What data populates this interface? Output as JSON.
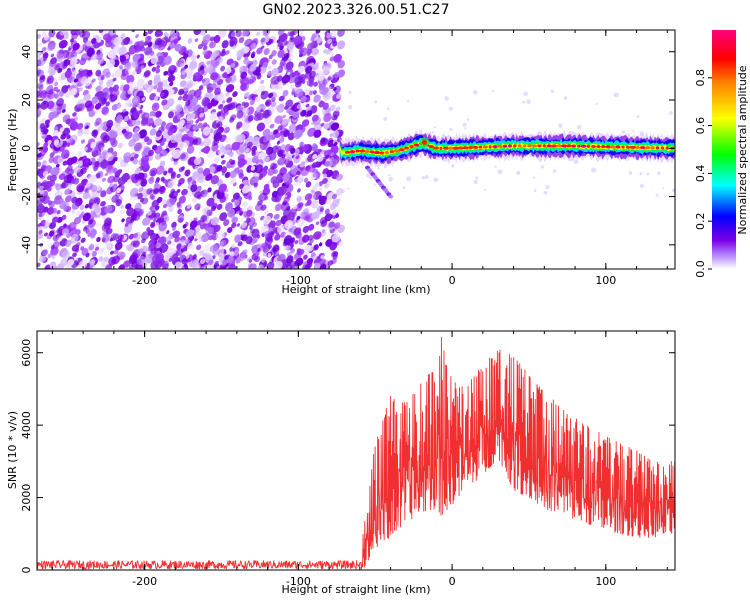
{
  "title": "GN02.2023.326.00.51.C27",
  "colorbar": {
    "label": "Normalized spectral amplitude",
    "ticks": [
      "0.0",
      "0.2",
      "0.4",
      "0.6",
      "0.8"
    ],
    "tick_values": [
      0.0,
      0.2,
      0.4,
      0.6,
      0.8
    ],
    "range": [
      0,
      1
    ],
    "colors": [
      "#ffffff",
      "#7a00e6",
      "#0000ff",
      "#00ffff",
      "#00ff00",
      "#ffff00",
      "#ff0000",
      "#ff0080"
    ]
  },
  "chart_data": [
    {
      "type": "heatmap",
      "title": "",
      "xlabel": "Height of straight line (km)",
      "ylabel": "Frequency (Hz)",
      "xlim": [
        -270,
        145
      ],
      "ylim": [
        -50,
        49
      ],
      "x_ticks": [
        -200,
        -100,
        0,
        100
      ],
      "x_tick_labels": [
        "-200",
        "-100",
        "0",
        "100"
      ],
      "y_ticks": [
        -40,
        -20,
        0,
        20,
        40
      ],
      "y_tick_labels": [
        "-40",
        "-20",
        "0",
        "20",
        "40"
      ],
      "grid": false,
      "regions": [
        {
          "name": "noise",
          "x_range": [
            -270,
            -75
          ],
          "freq_range": [
            -50,
            49
          ],
          "amplitude": "0.0-0.4"
        },
        {
          "name": "signal band",
          "x_range": [
            -75,
            145
          ],
          "freq_center": 0,
          "amplitude": "0.8-1.0"
        },
        {
          "name": "secondary trace",
          "x_range": [
            -55,
            -40
          ],
          "freq_range": [
            -20,
            -8
          ],
          "amplitude": "0.2-0.4"
        }
      ],
      "signal_center_freq": [
        [
          -72,
          -2
        ],
        [
          -60,
          -1
        ],
        [
          -45,
          -2
        ],
        [
          -35,
          -1
        ],
        [
          -20,
          2
        ],
        [
          -10,
          0
        ],
        [
          0,
          0
        ],
        [
          40,
          1
        ],
        [
          75,
          1
        ],
        [
          145,
          0
        ]
      ]
    },
    {
      "type": "line",
      "title": "",
      "xlabel": "Height of straight line (km)",
      "ylabel": "SNR (10 * v/v)",
      "xlim": [
        -270,
        145
      ],
      "ylim": [
        0,
        6600
      ],
      "x_ticks": [
        -200,
        -100,
        0,
        100
      ],
      "x_tick_labels": [
        "-200",
        "-100",
        "0",
        "100"
      ],
      "y_ticks": [
        0,
        2000,
        4000,
        6000
      ],
      "y_tick_labels": [
        "0",
        "2000",
        "4000",
        "6000"
      ],
      "grid": false,
      "color": "#f03030",
      "envelope": {
        "x": [
          -270,
          -200,
          -100,
          -60,
          -56,
          -50,
          -40,
          -30,
          -20,
          -10,
          -7,
          0,
          10,
          20,
          30,
          40,
          50,
          60,
          80,
          100,
          120,
          130,
          145
        ],
        "low": [
          0,
          0,
          0,
          0,
          100,
          600,
          900,
          1300,
          1600,
          1700,
          1500,
          1800,
          2300,
          2600,
          3100,
          2200,
          2000,
          1700,
          1400,
          1100,
          900,
          900,
          1000
        ],
        "high": [
          300,
          300,
          300,
          300,
          1600,
          3600,
          4800,
          4600,
          5200,
          5600,
          6600,
          5200,
          5100,
          5700,
          6100,
          5900,
          5400,
          4900,
          4200,
          3700,
          3300,
          3000,
          3000
        ]
      }
    }
  ]
}
